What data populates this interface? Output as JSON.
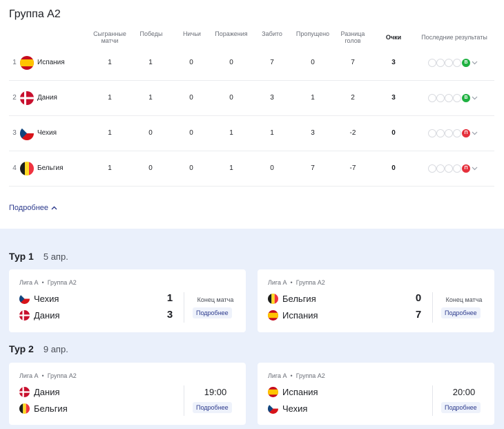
{
  "title": "Группа A2",
  "headers": {
    "played": "Сыгранные матчи",
    "wins": "Победы",
    "draws": "Ничьи",
    "losses": "Поражения",
    "scored": "Забито",
    "conceded": "Пропущено",
    "diff": "Разница голов",
    "points": "Очки",
    "form": "Последние результаты"
  },
  "standings": [
    {
      "pos": "1",
      "team": "Испания",
      "flag": "spain-flag",
      "played": "1",
      "wins": "1",
      "draws": "0",
      "losses": "0",
      "scored": "7",
      "conceded": "0",
      "diff": "7",
      "points": "3",
      "last": "В",
      "last_type": "w"
    },
    {
      "pos": "2",
      "team": "Дания",
      "flag": "denmark-flag",
      "played": "1",
      "wins": "1",
      "draws": "0",
      "losses": "0",
      "scored": "3",
      "conceded": "1",
      "diff": "2",
      "points": "3",
      "last": "В",
      "last_type": "w"
    },
    {
      "pos": "3",
      "team": "Чехия",
      "flag": "czechia-flag",
      "played": "1",
      "wins": "0",
      "draws": "0",
      "losses": "1",
      "scored": "1",
      "conceded": "3",
      "diff": "-2",
      "points": "0",
      "last": "П",
      "last_type": "l"
    },
    {
      "pos": "4",
      "team": "Бельгия",
      "flag": "belgium-flag",
      "played": "1",
      "wins": "0",
      "draws": "0",
      "losses": "1",
      "scored": "0",
      "conceded": "7",
      "diff": "-7",
      "points": "0",
      "last": "П",
      "last_type": "l"
    }
  ],
  "more_label": "Подробнее",
  "tours": [
    {
      "label": "Тур 1",
      "date": "5 апр.",
      "matches": [
        {
          "meta_league": "Лига А",
          "meta_group": "Группа A2",
          "home": "Чехия",
          "away": "Дания",
          "home_score": "1",
          "away_score": "3",
          "status": "Конец матча",
          "button": "Подробнее"
        },
        {
          "meta_league": "Лига А",
          "meta_group": "Группа A2",
          "home": "Бельгия",
          "away": "Испания",
          "home_score": "0",
          "away_score": "7",
          "status": "Конец матча",
          "button": "Подробнее"
        }
      ]
    },
    {
      "label": "Тур 2",
      "date": "9 апр.",
      "matches": [
        {
          "meta_league": "Лига А",
          "meta_group": "Группа A2",
          "home": "Дания",
          "away": "Бельгия",
          "time": "19:00",
          "button": "Подробнее"
        },
        {
          "meta_league": "Лига А",
          "meta_group": "Группа A2",
          "home": "Испания",
          "away": "Чехия",
          "time": "20:00",
          "button": "Подробнее"
        }
      ]
    }
  ],
  "colors": {
    "win": "#1fb141",
    "loss": "#e5303c",
    "link": "#2c3a8c",
    "bottom_bg": "#eaf0fb"
  }
}
